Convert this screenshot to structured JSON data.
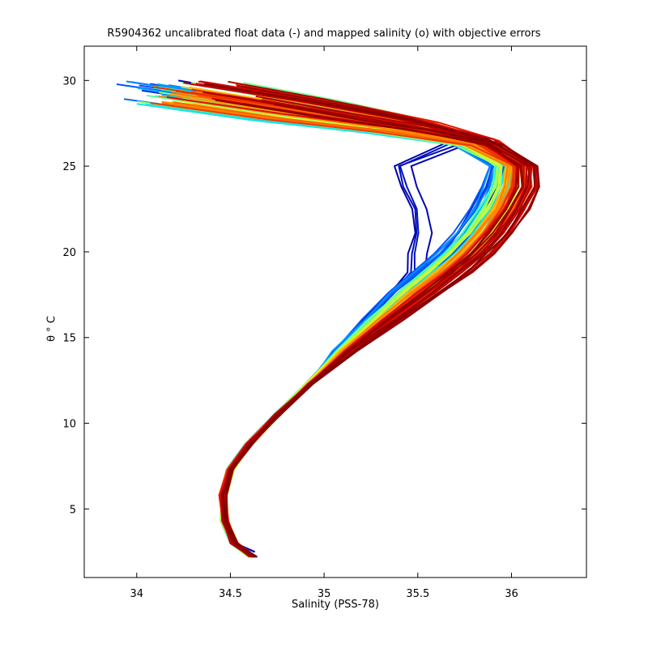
{
  "chart_data": {
    "type": "line",
    "title": "R5904362 uncalibrated float data (-) and mapped salinity (o) with objective errors",
    "xlabel": "Salinity (PSS-78)",
    "ylabel": "θ ° C",
    "xlim": [
      33.72,
      36.4
    ],
    "ylim": [
      1,
      32
    ],
    "xticks": [
      34,
      34.5,
      35,
      35.5,
      36
    ],
    "xtick_labels": [
      "34",
      "34.5",
      "35",
      "35.5",
      "36"
    ],
    "yticks": [
      5,
      10,
      15,
      20,
      25,
      30
    ],
    "ytick_labels": [
      "5",
      "10",
      "15",
      "20",
      "25",
      "30"
    ],
    "grid": false,
    "legend": "none",
    "colormap": "jet",
    "colormap_stops": [
      "#0000ad",
      "#0052ff",
      "#00d8ff",
      "#52ffad",
      "#d8ff27",
      "#ffc800",
      "#ff5200",
      "#d60000",
      "#800000"
    ],
    "n_profiles": 110,
    "mean_profile": {
      "salinity": [
        34.62,
        34.52,
        34.47,
        34.46,
        34.5,
        34.6,
        34.75,
        34.92,
        35.1,
        35.3,
        35.48,
        35.62,
        35.74,
        35.84,
        35.93,
        35.99,
        36.0,
        35.8,
        35.4,
        34.9,
        34.35
      ],
      "theta": [
        2.2,
        3.0,
        4.3,
        5.8,
        7.3,
        8.8,
        10.5,
        12.3,
        14.2,
        16.0,
        17.6,
        18.8,
        19.9,
        21.1,
        22.5,
        23.8,
        25.0,
        26.4,
        27.4,
        28.3,
        29.3
      ]
    },
    "early_profile_variant": {
      "salinity": [
        35.6,
        35.58,
        35.62,
        35.6,
        35.55,
        35.5,
        35.35
      ],
      "theta": [
        17.8,
        19.5,
        21.0,
        22.5,
        23.6,
        25.0,
        26.2
      ]
    }
  }
}
